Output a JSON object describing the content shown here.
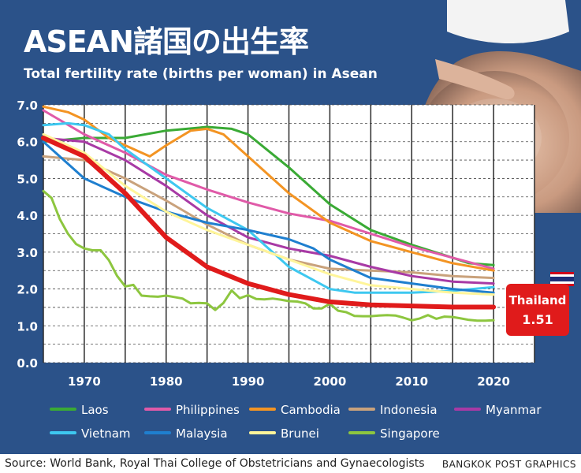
{
  "title": "ASEAN諸国の出生率",
  "subtitle": "Total fertility rate (births per woman) in Asean",
  "footer": {
    "source": "Source: World Bank, Royal Thai College of Obstetricians and Gynaecologists",
    "credit": "BANGKOK POST GRAPHICS"
  },
  "callout": {
    "name": "Thailand",
    "value": "1.51",
    "color": "#e01b1b"
  },
  "icons": {
    "flag": "thailand-flag-icon"
  },
  "colors": {
    "background": "#2b5289",
    "plot": "#ffffff",
    "footer_text": "#222222"
  },
  "chart_data": {
    "type": "line",
    "title": "Total fertility rate (births per woman) in Asean",
    "xlabel": "",
    "ylabel": "",
    "xlim": [
      1965,
      2025
    ],
    "ylim": [
      0,
      7
    ],
    "x_ticks": [
      1970,
      1980,
      1990,
      2000,
      2010,
      2020
    ],
    "y_ticks": [
      "0.0",
      "1.0",
      "2.0",
      "3.0",
      "4.0",
      "5.0",
      "6.0",
      "7.0"
    ],
    "grid": "horizontal dashed",
    "legend_position": "bottom",
    "series": [
      {
        "name": "Laos",
        "color": "#3aaa35",
        "width": 3,
        "x": [
          1965,
          1970,
          1975,
          1980,
          1985,
          1988,
          1990,
          1995,
          2000,
          2005,
          2010,
          2015,
          2017,
          2020
        ],
        "y": [
          6.0,
          6.1,
          6.1,
          6.3,
          6.4,
          6.35,
          6.2,
          5.3,
          4.3,
          3.6,
          3.2,
          2.85,
          2.7,
          2.65
        ]
      },
      {
        "name": "Philippines",
        "color": "#e05aa8",
        "width": 3,
        "x": [
          1965,
          1970,
          1975,
          1980,
          1985,
          1990,
          1995,
          2000,
          2005,
          2010,
          2015,
          2020
        ],
        "y": [
          6.85,
          6.2,
          5.7,
          5.1,
          4.7,
          4.35,
          4.05,
          3.85,
          3.5,
          3.15,
          2.85,
          2.55
        ]
      },
      {
        "name": "Cambodia",
        "color": "#f39423",
        "width": 3,
        "x": [
          1965,
          1968,
          1970,
          1973,
          1975,
          1978,
          1980,
          1983,
          1985,
          1987,
          1990,
          1995,
          2000,
          2005,
          2010,
          2015,
          2020
        ],
        "y": [
          6.95,
          6.8,
          6.6,
          6.1,
          5.9,
          5.6,
          5.9,
          6.3,
          6.35,
          6.2,
          5.6,
          4.6,
          3.8,
          3.3,
          3.0,
          2.7,
          2.5
        ]
      },
      {
        "name": "Indonesia",
        "color": "#c9a27c",
        "width": 3,
        "x": [
          1965,
          1970,
          1975,
          1980,
          1985,
          1990,
          1995,
          2000,
          2005,
          2010,
          2015,
          2020
        ],
        "y": [
          5.6,
          5.5,
          5.0,
          4.4,
          3.75,
          3.2,
          2.8,
          2.55,
          2.5,
          2.45,
          2.35,
          2.3
        ]
      },
      {
        "name": "Myanmar",
        "color": "#a83aa5",
        "width": 3,
        "x": [
          1965,
          1970,
          1975,
          1980,
          1985,
          1990,
          1995,
          2000,
          2005,
          2010,
          2015,
          2020
        ],
        "y": [
          6.1,
          6.0,
          5.5,
          4.8,
          4.0,
          3.4,
          3.1,
          2.9,
          2.6,
          2.35,
          2.2,
          2.15
        ]
      },
      {
        "name": "Vietnam",
        "color": "#3ec8f0",
        "width": 3,
        "x": [
          1965,
          1968,
          1970,
          1973,
          1975,
          1980,
          1985,
          1990,
          1995,
          2000,
          2003,
          2005,
          2010,
          2015,
          2020
        ],
        "y": [
          6.45,
          6.5,
          6.45,
          6.2,
          5.8,
          5.0,
          4.2,
          3.6,
          2.6,
          2.0,
          1.9,
          1.9,
          1.9,
          1.95,
          2.05
        ]
      },
      {
        "name": "Malaysia",
        "color": "#1f7fcf",
        "width": 3,
        "x": [
          1965,
          1970,
          1975,
          1980,
          1985,
          1990,
          1995,
          1998,
          2000,
          2005,
          2010,
          2015,
          2020
        ],
        "y": [
          6.0,
          5.0,
          4.5,
          4.1,
          3.8,
          3.6,
          3.35,
          3.1,
          2.8,
          2.3,
          2.15,
          2.0,
          1.9
        ]
      },
      {
        "name": "Brunei",
        "color": "#fff59a",
        "width": 3,
        "x": [
          1965,
          1970,
          1975,
          1980,
          1985,
          1990,
          1995,
          2000,
          2005,
          2010,
          2015,
          2020
        ],
        "y": [
          6.2,
          5.7,
          4.8,
          4.1,
          3.6,
          3.2,
          2.8,
          2.4,
          2.1,
          2.0,
          1.9,
          1.85
        ]
      },
      {
        "name": "Singapore",
        "color": "#8dc63f",
        "width": 3,
        "x": [
          1965,
          1966,
          1967,
          1968,
          1969,
          1970,
          1971,
          1972,
          1973,
          1974,
          1975,
          1976,
          1977,
          1978,
          1979,
          1980,
          1981,
          1982,
          1983,
          1984,
          1985,
          1986,
          1987,
          1988,
          1989,
          1990,
          1991,
          1992,
          1993,
          1994,
          1995,
          1996,
          1997,
          1998,
          1999,
          2000,
          2001,
          2002,
          2003,
          2004,
          2005,
          2006,
          2007,
          2008,
          2009,
          2010,
          2011,
          2012,
          2013,
          2014,
          2015,
          2016,
          2017,
          2018,
          2019,
          2020
        ],
        "y": [
          4.66,
          4.47,
          3.9,
          3.5,
          3.22,
          3.1,
          3.05,
          3.05,
          2.78,
          2.36,
          2.07,
          2.11,
          1.82,
          1.8,
          1.79,
          1.82,
          1.78,
          1.74,
          1.61,
          1.62,
          1.61,
          1.43,
          1.62,
          1.96,
          1.75,
          1.83,
          1.73,
          1.72,
          1.74,
          1.71,
          1.67,
          1.66,
          1.61,
          1.47,
          1.47,
          1.6,
          1.41,
          1.37,
          1.27,
          1.26,
          1.26,
          1.28,
          1.29,
          1.28,
          1.22,
          1.15,
          1.2,
          1.29,
          1.19,
          1.25,
          1.24,
          1.2,
          1.16,
          1.14,
          1.14,
          1.15
        ]
      },
      {
        "name": "Thailand",
        "color": "#e01b1b",
        "width": 6,
        "legend": false,
        "x": [
          1965,
          1970,
          1975,
          1980,
          1985,
          1990,
          1995,
          2000,
          2005,
          2010,
          2015,
          2020
        ],
        "y": [
          6.1,
          5.6,
          4.6,
          3.4,
          2.6,
          2.15,
          1.85,
          1.65,
          1.57,
          1.54,
          1.51,
          1.51
        ]
      }
    ]
  }
}
